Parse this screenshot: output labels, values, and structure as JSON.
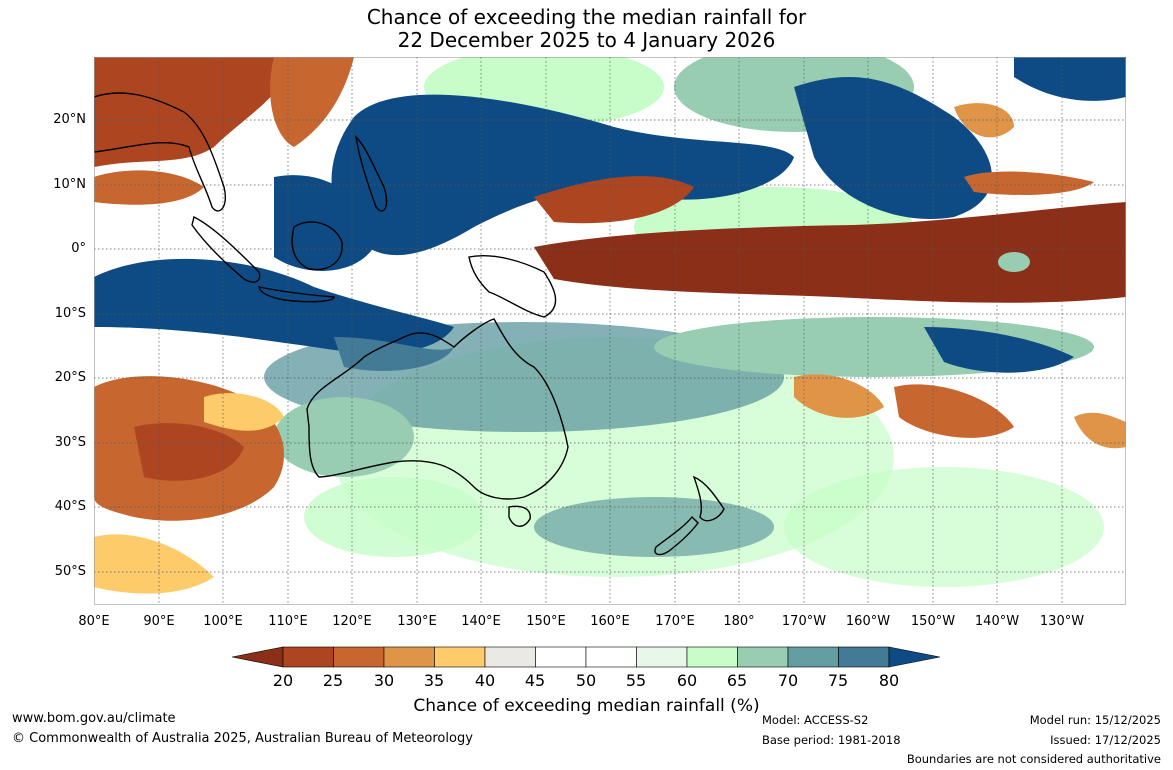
{
  "title": {
    "line1": "Chance of exceeding the median rainfall for",
    "line2": "22 December 2025 to 4 January 2026"
  },
  "map": {
    "lat_labels": [
      "20°N",
      "10°N",
      "0°",
      "10°S",
      "20°S",
      "30°S",
      "40°S",
      "50°S"
    ],
    "lon_labels": [
      "80°E",
      "90°E",
      "100°E",
      "110°E",
      "120°E",
      "130°E",
      "140°E",
      "150°E",
      "160°E",
      "170°E",
      "180°",
      "170°W",
      "160°W",
      "150°W",
      "140°W",
      "130°W"
    ]
  },
  "colorbar": {
    "ticks": [
      "20",
      "25",
      "30",
      "35",
      "40",
      "45",
      "50",
      "55",
      "60",
      "65",
      "70",
      "75",
      "80"
    ],
    "colors": [
      "#8c2f18",
      "#ad4520",
      "#c86630",
      "#e09448",
      "#fecb6a",
      "#ebe9e4",
      "#ffffff",
      "#ffffff",
      "#e9f7e9",
      "#c6fdc8",
      "#98cdb1",
      "#659ea2",
      "#437a95",
      "#0e4b84"
    ],
    "label": "Chance of exceeding median rainfall (%)"
  },
  "footer": {
    "url": "www.bom.gov.au/climate",
    "copyright": "© Commonwealth of Australia 2025, Australian Bureau of Meteorology",
    "model": "Model: ACCESS-S2",
    "base_period": "Base period: 1981-2018",
    "model_run": "Model run: 15/12/2025",
    "issued": "Issued: 17/12/2025",
    "boundaries": "Boundaries are not considered authoritative"
  }
}
